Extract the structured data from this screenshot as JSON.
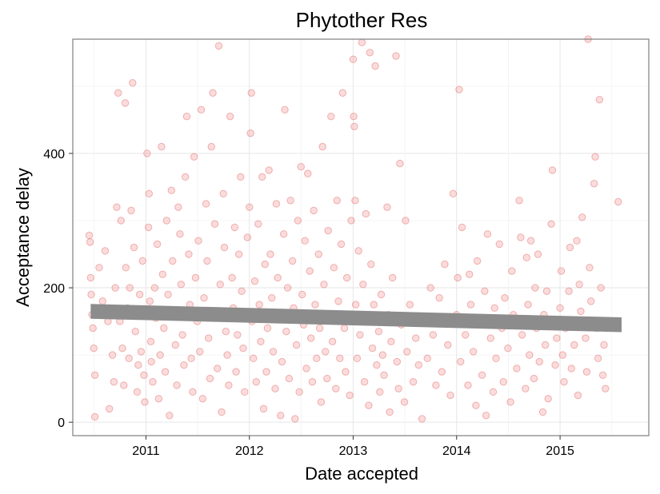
{
  "chart_data": {
    "type": "scatter",
    "title": "Phytother Res",
    "xlabel": "Date accepted",
    "ylabel": "Acceptance delay",
    "x_scale": "date",
    "xlim": [
      "2010-04-18",
      "2015-11-10"
    ],
    "ylim": [
      -20,
      570
    ],
    "x_ticks": [
      {
        "value": "2011-01-01",
        "label": "2011"
      },
      {
        "value": "2012-01-01",
        "label": "2012"
      },
      {
        "value": "2013-01-01",
        "label": "2013"
      },
      {
        "value": "2014-01-01",
        "label": "2014"
      },
      {
        "value": "2015-01-01",
        "label": "2015"
      }
    ],
    "y_ticks": [
      {
        "value": 0,
        "label": "0"
      },
      {
        "value": 200,
        "label": "200"
      },
      {
        "value": 400,
        "label": "400"
      }
    ],
    "grid": true,
    "point_color": "#f08080",
    "point_stroke": "#e06060",
    "trend_color": "#8c8c8c",
    "trend": {
      "x_start": "2010-06-20",
      "x_end": "2015-08-06",
      "y_start": 165,
      "y_end": 145,
      "band_half_width": 11
    },
    "points": [
      [
        "2010-06-15",
        278
      ],
      [
        "2010-06-18",
        268
      ],
      [
        "2010-06-20",
        215
      ],
      [
        "2010-06-22",
        190
      ],
      [
        "2010-06-25",
        160
      ],
      [
        "2010-06-28",
        140
      ],
      [
        "2010-07-01",
        110
      ],
      [
        "2010-07-05",
        70
      ],
      [
        "2010-07-05",
        8
      ],
      [
        "2010-07-15",
        160
      ],
      [
        "2010-07-20",
        230
      ],
      [
        "2010-08-01",
        180
      ],
      [
        "2010-08-10",
        255
      ],
      [
        "2010-08-20",
        150
      ],
      [
        "2010-08-25",
        20
      ],
      [
        "2010-09-05",
        100
      ],
      [
        "2010-09-10",
        60
      ],
      [
        "2010-09-15",
        200
      ],
      [
        "2010-09-20",
        320
      ],
      [
        "2010-09-25",
        490
      ],
      [
        "2010-10-01",
        150
      ],
      [
        "2010-10-05",
        300
      ],
      [
        "2010-10-10",
        110
      ],
      [
        "2010-10-15",
        55
      ],
      [
        "2010-10-20",
        475
      ],
      [
        "2010-10-22",
        230
      ],
      [
        "2010-10-28",
        170
      ],
      [
        "2010-11-02",
        95
      ],
      [
        "2010-11-05",
        200
      ],
      [
        "2010-11-10",
        315
      ],
      [
        "2010-11-15",
        505
      ],
      [
        "2010-11-20",
        260
      ],
      [
        "2010-11-25",
        135
      ],
      [
        "2010-12-01",
        45
      ],
      [
        "2010-12-05",
        85
      ],
      [
        "2010-12-10",
        190
      ],
      [
        "2010-12-15",
        105
      ],
      [
        "2010-12-20",
        240
      ],
      [
        "2010-12-25",
        70
      ],
      [
        "2010-12-28",
        30
      ],
      [
        "2011-01-05",
        400
      ],
      [
        "2011-01-10",
        290
      ],
      [
        "2011-01-12",
        340
      ],
      [
        "2011-01-15",
        180
      ],
      [
        "2011-01-18",
        120
      ],
      [
        "2011-01-20",
        90
      ],
      [
        "2011-01-25",
        60
      ],
      [
        "2011-02-01",
        200
      ],
      [
        "2011-02-05",
        155
      ],
      [
        "2011-02-10",
        265
      ],
      [
        "2011-02-15",
        35
      ],
      [
        "2011-02-20",
        100
      ],
      [
        "2011-02-25",
        410
      ],
      [
        "2011-03-01",
        220
      ],
      [
        "2011-03-05",
        140
      ],
      [
        "2011-03-10",
        75
      ],
      [
        "2011-03-15",
        300
      ],
      [
        "2011-03-20",
        190
      ],
      [
        "2011-03-25",
        10
      ],
      [
        "2011-04-01",
        345
      ],
      [
        "2011-04-05",
        240
      ],
      [
        "2011-04-10",
        160
      ],
      [
        "2011-04-15",
        115
      ],
      [
        "2011-04-20",
        55
      ],
      [
        "2011-04-25",
        320
      ],
      [
        "2011-05-01",
        280
      ],
      [
        "2011-05-05",
        205
      ],
      [
        "2011-05-10",
        130
      ],
      [
        "2011-05-15",
        85
      ],
      [
        "2011-05-20",
        365
      ],
      [
        "2011-05-25",
        455
      ],
      [
        "2011-06-01",
        250
      ],
      [
        "2011-06-05",
        175
      ],
      [
        "2011-06-10",
        95
      ],
      [
        "2011-06-15",
        45
      ],
      [
        "2011-06-20",
        395
      ],
      [
        "2011-06-25",
        215
      ],
      [
        "2011-07-01",
        150
      ],
      [
        "2011-07-05",
        270
      ],
      [
        "2011-07-10",
        105
      ],
      [
        "2011-07-15",
        465
      ],
      [
        "2011-07-20",
        35
      ],
      [
        "2011-07-25",
        185
      ],
      [
        "2011-08-01",
        325
      ],
      [
        "2011-08-05",
        240
      ],
      [
        "2011-08-10",
        125
      ],
      [
        "2011-08-15",
        65
      ],
      [
        "2011-08-20",
        410
      ],
      [
        "2011-08-25",
        490
      ],
      [
        "2011-09-01",
        295
      ],
      [
        "2011-09-05",
        155
      ],
      [
        "2011-09-10",
        80
      ],
      [
        "2011-09-15",
        560
      ],
      [
        "2011-09-20",
        205
      ],
      [
        "2011-09-25",
        15
      ],
      [
        "2011-10-01",
        340
      ],
      [
        "2011-10-05",
        260
      ],
      [
        "2011-10-10",
        135
      ],
      [
        "2011-10-15",
        100
      ],
      [
        "2011-10-20",
        55
      ],
      [
        "2011-10-25",
        455
      ],
      [
        "2011-11-01",
        215
      ],
      [
        "2011-11-05",
        170
      ],
      [
        "2011-11-10",
        290
      ],
      [
        "2011-11-15",
        75
      ],
      [
        "2011-11-20",
        130
      ],
      [
        "2011-11-25",
        250
      ],
      [
        "2011-12-01",
        365
      ],
      [
        "2011-12-05",
        195
      ],
      [
        "2011-12-10",
        110
      ],
      [
        "2011-12-15",
        45
      ],
      [
        "2011-12-20",
        160
      ],
      [
        "2011-12-25",
        275
      ],
      [
        "2012-01-01",
        320
      ],
      [
        "2012-01-05",
        430
      ],
      [
        "2012-01-08",
        490
      ],
      [
        "2012-01-10",
        150
      ],
      [
        "2012-01-15",
        95
      ],
      [
        "2012-01-20",
        210
      ],
      [
        "2012-01-25",
        60
      ],
      [
        "2012-02-01",
        295
      ],
      [
        "2012-02-05",
        175
      ],
      [
        "2012-02-10",
        120
      ],
      [
        "2012-02-15",
        365
      ],
      [
        "2012-02-20",
        20
      ],
      [
        "2012-02-25",
        235
      ],
      [
        "2012-03-01",
        75
      ],
      [
        "2012-03-05",
        140
      ],
      [
        "2012-03-10",
        375
      ],
      [
        "2012-03-15",
        250
      ],
      [
        "2012-03-20",
        185
      ],
      [
        "2012-03-25",
        105
      ],
      [
        "2012-04-01",
        50
      ],
      [
        "2012-04-05",
        325
      ],
      [
        "2012-04-10",
        215
      ],
      [
        "2012-04-15",
        160
      ],
      [
        "2012-04-20",
        10
      ],
      [
        "2012-04-25",
        90
      ],
      [
        "2012-05-01",
        280
      ],
      [
        "2012-05-05",
        465
      ],
      [
        "2012-05-10",
        135
      ],
      [
        "2012-05-15",
        200
      ],
      [
        "2012-05-20",
        65
      ],
      [
        "2012-05-25",
        330
      ],
      [
        "2012-06-01",
        240
      ],
      [
        "2012-06-05",
        170
      ],
      [
        "2012-06-10",
        5
      ],
      [
        "2012-06-15",
        115
      ],
      [
        "2012-06-20",
        300
      ],
      [
        "2012-06-25",
        45
      ],
      [
        "2012-07-01",
        380
      ],
      [
        "2012-07-05",
        190
      ],
      [
        "2012-07-10",
        145
      ],
      [
        "2012-07-15",
        270
      ],
      [
        "2012-07-20",
        80
      ],
      [
        "2012-07-25",
        370
      ],
      [
        "2012-08-01",
        225
      ],
      [
        "2012-08-05",
        125
      ],
      [
        "2012-08-10",
        60
      ],
      [
        "2012-08-15",
        315
      ],
      [
        "2012-08-20",
        175
      ],
      [
        "2012-08-25",
        95
      ],
      [
        "2012-09-01",
        250
      ],
      [
        "2012-09-05",
        140
      ],
      [
        "2012-09-10",
        30
      ],
      [
        "2012-09-15",
        410
      ],
      [
        "2012-09-20",
        205
      ],
      [
        "2012-09-25",
        105
      ],
      [
        "2012-10-01",
        65
      ],
      [
        "2012-10-05",
        285
      ],
      [
        "2012-10-10",
        160
      ],
      [
        "2012-10-15",
        455
      ],
      [
        "2012-10-20",
        120
      ],
      [
        "2012-10-25",
        230
      ],
      [
        "2012-11-01",
        50
      ],
      [
        "2012-11-05",
        330
      ],
      [
        "2012-11-10",
        180
      ],
      [
        "2012-11-15",
        95
      ],
      [
        "2012-11-20",
        265
      ],
      [
        "2012-11-25",
        490
      ],
      [
        "2012-12-01",
        140
      ],
      [
        "2012-12-05",
        75
      ],
      [
        "2012-12-10",
        215
      ],
      [
        "2012-12-15",
        155
      ],
      [
        "2012-12-20",
        40
      ],
      [
        "2012-12-25",
        300
      ],
      [
        "2013-01-01",
        540
      ],
      [
        "2013-01-03",
        455
      ],
      [
        "2013-01-05",
        440
      ],
      [
        "2013-01-08",
        330
      ],
      [
        "2013-01-10",
        175
      ],
      [
        "2013-01-15",
        95
      ],
      [
        "2013-01-20",
        255
      ],
      [
        "2013-01-25",
        130
      ],
      [
        "2013-02-01",
        565
      ],
      [
        "2013-02-05",
        205
      ],
      [
        "2013-02-10",
        60
      ],
      [
        "2013-02-15",
        310
      ],
      [
        "2013-02-20",
        150
      ],
      [
        "2013-02-25",
        25
      ],
      [
        "2013-03-01",
        550
      ],
      [
        "2013-03-05",
        235
      ],
      [
        "2013-03-10",
        110
      ],
      [
        "2013-03-15",
        175
      ],
      [
        "2013-03-20",
        530
      ],
      [
        "2013-03-25",
        85
      ],
      [
        "2013-04-01",
        135
      ],
      [
        "2013-04-05",
        45
      ],
      [
        "2013-04-10",
        190
      ],
      [
        "2013-04-15",
        100
      ],
      [
        "2013-04-20",
        70
      ],
      [
        "2013-05-01",
        320
      ],
      [
        "2013-05-05",
        160
      ],
      [
        "2013-05-10",
        15
      ],
      [
        "2013-05-15",
        120
      ],
      [
        "2013-05-20",
        215
      ],
      [
        "2013-06-01",
        545
      ],
      [
        "2013-06-05",
        90
      ],
      [
        "2013-06-10",
        50
      ],
      [
        "2013-06-15",
        385
      ],
      [
        "2013-06-20",
        145
      ],
      [
        "2013-07-01",
        30
      ],
      [
        "2013-07-05",
        300
      ],
      [
        "2013-07-10",
        105
      ],
      [
        "2013-07-20",
        175
      ],
      [
        "2013-08-01",
        60
      ],
      [
        "2013-08-10",
        125
      ],
      [
        "2013-08-20",
        85
      ],
      [
        "2013-09-01",
        5
      ],
      [
        "2013-09-10",
        150
      ],
      [
        "2013-09-20",
        95
      ],
      [
        "2013-10-01",
        200
      ],
      [
        "2013-10-10",
        130
      ],
      [
        "2013-10-20",
        55
      ],
      [
        "2013-11-01",
        185
      ],
      [
        "2013-11-10",
        75
      ],
      [
        "2013-11-20",
        235
      ],
      [
        "2013-12-01",
        115
      ],
      [
        "2013-12-10",
        40
      ],
      [
        "2013-12-20",
        340
      ],
      [
        "2014-01-01",
        160
      ],
      [
        "2014-01-05",
        215
      ],
      [
        "2014-01-10",
        495
      ],
      [
        "2014-01-15",
        90
      ],
      [
        "2014-01-20",
        290
      ],
      [
        "2014-02-01",
        130
      ],
      [
        "2014-02-10",
        55
      ],
      [
        "2014-02-15",
        220
      ],
      [
        "2014-02-20",
        175
      ],
      [
        "2014-03-01",
        105
      ],
      [
        "2014-03-10",
        25
      ],
      [
        "2014-03-15",
        240
      ],
      [
        "2014-03-20",
        150
      ],
      [
        "2014-04-01",
        70
      ],
      [
        "2014-04-10",
        195
      ],
      [
        "2014-04-15",
        10
      ],
      [
        "2014-04-20",
        280
      ],
      [
        "2014-05-01",
        125
      ],
      [
        "2014-05-10",
        45
      ],
      [
        "2014-05-15",
        170
      ],
      [
        "2014-05-20",
        95
      ],
      [
        "2014-06-01",
        265
      ],
      [
        "2014-06-10",
        140
      ],
      [
        "2014-06-15",
        60
      ],
      [
        "2014-06-20",
        185
      ],
      [
        "2014-07-01",
        110
      ],
      [
        "2014-07-10",
        30
      ],
      [
        "2014-07-15",
        225
      ],
      [
        "2014-07-20",
        160
      ],
      [
        "2014-08-01",
        80
      ],
      [
        "2014-08-10",
        330
      ],
      [
        "2014-08-15",
        275
      ],
      [
        "2014-08-20",
        130
      ],
      [
        "2014-09-01",
        50
      ],
      [
        "2014-09-05",
        245
      ],
      [
        "2014-09-10",
        175
      ],
      [
        "2014-09-15",
        100
      ],
      [
        "2014-09-20",
        270
      ],
      [
        "2014-10-01",
        65
      ],
      [
        "2014-10-05",
        200
      ],
      [
        "2014-10-10",
        140
      ],
      [
        "2014-10-15",
        250
      ],
      [
        "2014-10-20",
        90
      ],
      [
        "2014-11-01",
        15
      ],
      [
        "2014-11-05",
        160
      ],
      [
        "2014-11-10",
        115
      ],
      [
        "2014-11-15",
        195
      ],
      [
        "2014-11-20",
        35
      ],
      [
        "2014-12-01",
        295
      ],
      [
        "2014-12-05",
        375
      ],
      [
        "2014-12-10",
        150
      ],
      [
        "2014-12-15",
        85
      ],
      [
        "2014-12-20",
        125
      ],
      [
        "2015-01-01",
        170
      ],
      [
        "2015-01-05",
        225
      ],
      [
        "2015-01-10",
        100
      ],
      [
        "2015-01-15",
        60
      ],
      [
        "2015-01-20",
        140
      ],
      [
        "2015-02-01",
        195
      ],
      [
        "2015-02-05",
        260
      ],
      [
        "2015-02-10",
        80
      ],
      [
        "2015-02-15",
        150
      ],
      [
        "2015-02-20",
        115
      ],
      [
        "2015-03-01",
        270
      ],
      [
        "2015-03-05",
        40
      ],
      [
        "2015-03-10",
        205
      ],
      [
        "2015-03-15",
        165
      ],
      [
        "2015-03-20",
        305
      ],
      [
        "2015-04-01",
        125
      ],
      [
        "2015-04-05",
        75
      ],
      [
        "2015-04-10",
        570
      ],
      [
        "2015-04-15",
        230
      ],
      [
        "2015-04-20",
        180
      ],
      [
        "2015-05-01",
        355
      ],
      [
        "2015-05-05",
        395
      ],
      [
        "2015-05-10",
        140
      ],
      [
        "2015-05-15",
        95
      ],
      [
        "2015-05-20",
        480
      ],
      [
        "2015-05-25",
        200
      ],
      [
        "2015-06-01",
        70
      ],
      [
        "2015-06-05",
        115
      ],
      [
        "2015-06-10",
        50
      ],
      [
        "2015-07-25",
        328
      ]
    ]
  }
}
